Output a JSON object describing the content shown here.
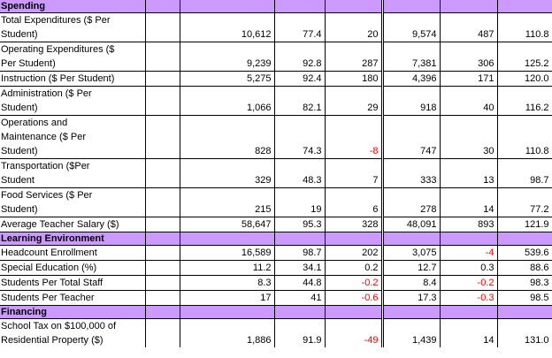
{
  "styles": {
    "section_header_bg": "#CC99FF",
    "negative_value_color": "#FF0000",
    "grid_border_color": "#000000",
    "text_color": "#000000"
  },
  "table": {
    "section_labels": [
      "Spending",
      "Learning Environment",
      "Financing"
    ],
    "rows": [
      {
        "type": "section",
        "label": "Spending"
      },
      {
        "type": "data",
        "label": "Total Expenditures ($ Per\nStudent)",
        "values": [
          "10,612",
          "77.4",
          "20",
          "9,574",
          "487",
          "110.8"
        ]
      },
      {
        "type": "data",
        "label": "Operating Expenditures ($\nPer Student)",
        "values": [
          "9,239",
          "92.8",
          "287",
          "7,381",
          "306",
          "125.2"
        ]
      },
      {
        "type": "data",
        "label": "Instruction ($ Per Student)",
        "values": [
          "5,275",
          "92.4",
          "180",
          "4,396",
          "171",
          "120.0"
        ]
      },
      {
        "type": "data",
        "label": "Administration ($ Per\nStudent)",
        "values": [
          "1,066",
          "82.1",
          "29",
          "918",
          "40",
          "116.2"
        ]
      },
      {
        "type": "data",
        "label": "Operations and\nMaintenance ($ Per\nStudent)",
        "values": [
          "828",
          "74.3",
          "-8",
          "747",
          "30",
          "110.8"
        ]
      },
      {
        "type": "data",
        "label": "Transportation ($Per\nStudent",
        "values": [
          "329",
          "48.3",
          "7",
          "333",
          "13",
          "98.7"
        ]
      },
      {
        "type": "data",
        "label": "Food Services ($ Per\nStudent)",
        "values": [
          "215",
          "19",
          "6",
          "278",
          "14",
          "77.2"
        ]
      },
      {
        "type": "data",
        "label": "Average Teacher Salary ($)",
        "values": [
          "58,647",
          "95.3",
          "328",
          "48,091",
          "893",
          "121.9"
        ]
      },
      {
        "type": "section",
        "label": "Learning Environment"
      },
      {
        "type": "data",
        "label": "Headcount Enrollment",
        "values": [
          "16,589",
          "98.7",
          "202",
          "3,075",
          "-4",
          "539.6"
        ]
      },
      {
        "type": "data",
        "label": "Special Education (%)",
        "values": [
          "11.2",
          "34.1",
          "0.2",
          "12.7",
          "0.3",
          "88.6"
        ]
      },
      {
        "type": "data",
        "label": "Students Per Total Staff",
        "values": [
          "8.3",
          "44.8",
          "-0.2",
          "8.4",
          "-0.2",
          "98.3"
        ]
      },
      {
        "type": "data",
        "label": "Students Per Teacher",
        "values": [
          "17",
          "41",
          "-0.6",
          "17.3",
          "-0.3",
          "98.5"
        ]
      },
      {
        "type": "section",
        "label": "Financing"
      },
      {
        "type": "data",
        "label": "School Tax on $100,000 of\nResidential Property ($)",
        "values": [
          "1,886",
          "91.9",
          "-49",
          "1,439",
          "14",
          "131.0"
        ]
      }
    ]
  }
}
